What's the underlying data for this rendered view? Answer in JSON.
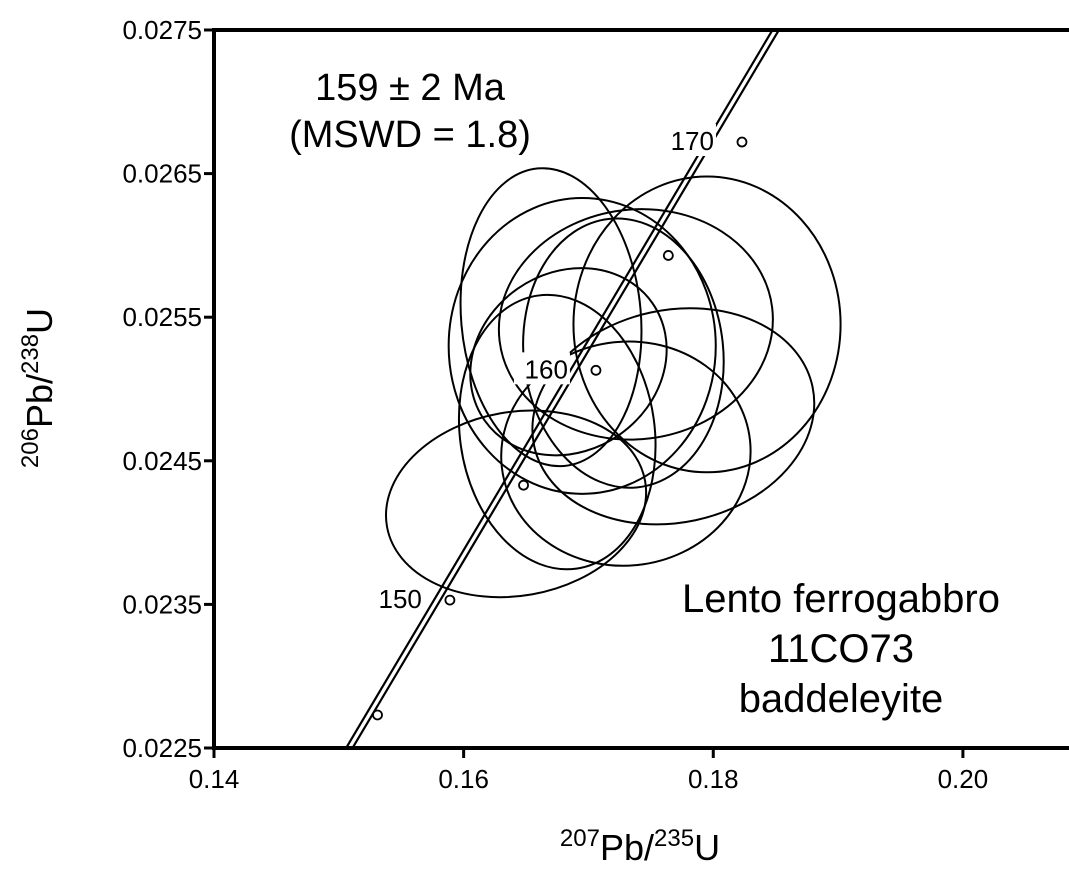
{
  "chart_data": {
    "type": "scatter",
    "title": "",
    "xlabel": {
      "sup1": "207",
      "base1": "Pb/",
      "sup2": "235",
      "base2": "U"
    },
    "ylabel": {
      "sup1": "206",
      "base1": "Pb/",
      "sup2": "238",
      "base2": "U"
    },
    "xlim": [
      0.14,
      0.2085
    ],
    "ylim": [
      0.0225,
      0.0275
    ],
    "x_ticks": [
      {
        "value": 0.14,
        "label": "0.14"
      },
      {
        "value": 0.16,
        "label": "0.16"
      },
      {
        "value": 0.18,
        "label": "0.18"
      },
      {
        "value": 0.2,
        "label": "0.20"
      }
    ],
    "y_ticks": [
      {
        "value": 0.0275,
        "label": "0.0275"
      },
      {
        "value": 0.0265,
        "label": "0.0265"
      },
      {
        "value": 0.0255,
        "label": "0.0255"
      },
      {
        "value": 0.0245,
        "label": "0.0245"
      },
      {
        "value": 0.0235,
        "label": "0.0235"
      },
      {
        "value": 0.0225,
        "label": "0.0225"
      }
    ],
    "grid": false,
    "concordia": {
      "band_half_width": 0.00022,
      "start": [
        0.1505,
        0.02245
      ],
      "end": [
        0.185,
        0.0275
      ],
      "age_markers": [
        {
          "x": 0.1531,
          "y": 0.02273,
          "label": ""
        },
        {
          "x": 0.1589,
          "y": 0.02353,
          "label": "150"
        },
        {
          "x": 0.1648,
          "y": 0.02433,
          "label": ""
        },
        {
          "x": 0.1706,
          "y": 0.02513,
          "label": "160"
        },
        {
          "x": 0.1764,
          "y": 0.02593,
          "label": ""
        },
        {
          "x": 0.1823,
          "y": 0.02672,
          "label": "170"
        }
      ]
    },
    "ellipses": [
      {
        "cx": 0.1695,
        "cy": 0.0253,
        "rx": 0.0107,
        "ry": 0.00103,
        "angle": 0
      },
      {
        "cx": 0.1795,
        "cy": 0.02545,
        "rx": 0.0107,
        "ry": 0.00103,
        "angle": 0
      },
      {
        "cx": 0.1738,
        "cy": 0.02545,
        "rx": 0.011,
        "ry": 0.0008,
        "angle": 7
      },
      {
        "cx": 0.167,
        "cy": 0.0255,
        "rx": 0.0072,
        "ry": 0.00104,
        "angle": 5
      },
      {
        "cx": 0.1728,
        "cy": 0.02525,
        "rx": 0.008,
        "ry": 0.00094,
        "angle": 6
      },
      {
        "cx": 0.1684,
        "cy": 0.02519,
        "rx": 0.0082,
        "ry": 0.00062,
        "angle": 35
      },
      {
        "cx": 0.1768,
        "cy": 0.02481,
        "rx": 0.0114,
        "ry": 0.00074,
        "angle": 12
      },
      {
        "cx": 0.1642,
        "cy": 0.0242,
        "rx": 0.0105,
        "ry": 0.00064,
        "angle": 10
      },
      {
        "cx": 0.173,
        "cy": 0.02455,
        "rx": 0.01,
        "ry": 0.00078,
        "angle": 6
      },
      {
        "cx": 0.1675,
        "cy": 0.0247,
        "rx": 0.0078,
        "ry": 0.00096,
        "angle": 8
      }
    ],
    "annotations": {
      "age_result": "159 ± 2 Ma",
      "mswd": "(MSWD = 1.8)",
      "sample_name": "Lento ferrogabbro",
      "sample_id": "11CO73",
      "mineral": "baddeleyite"
    }
  }
}
